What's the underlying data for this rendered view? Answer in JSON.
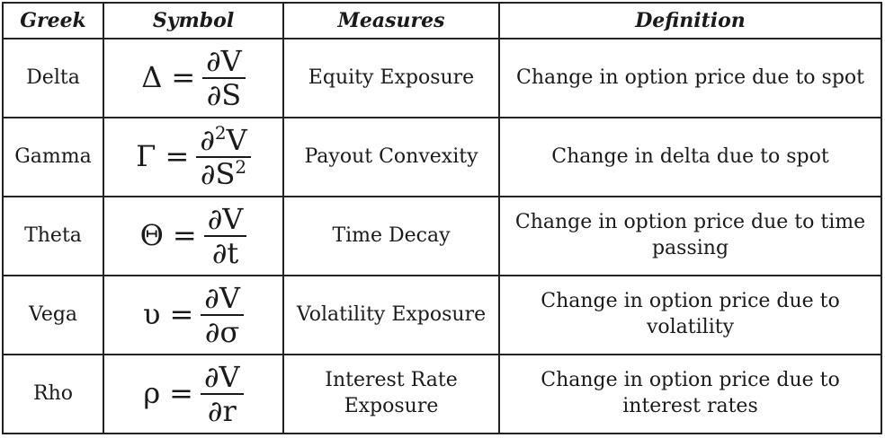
{
  "headers": {
    "greek": "Greek",
    "symbol": "Symbol",
    "measures": "Measures",
    "definition": "Definition"
  },
  "rows": [
    {
      "greek": "Delta",
      "lhs": "Δ",
      "num": "∂V",
      "num_sup": "",
      "den": "∂S",
      "den_sup": "",
      "measures": "Equity Exposure",
      "definition": "Change in option price due to spot"
    },
    {
      "greek": "Gamma",
      "lhs": "Γ",
      "num": "∂",
      "num_sup": "2",
      "num_tail": "V",
      "den": "∂S",
      "den_sup": "2",
      "measures": "Payout Convexity",
      "definition": "Change in delta due to spot"
    },
    {
      "greek": "Theta",
      "lhs": "Θ",
      "num": "∂V",
      "num_sup": "",
      "den": "∂t",
      "den_sup": "",
      "measures": "Time Decay",
      "definition": "Change in option price due to time passing"
    },
    {
      "greek": "Vega",
      "lhs": "υ",
      "num": "∂V",
      "num_sup": "",
      "den": "∂σ",
      "den_sup": "",
      "measures": "Volatility Exposure",
      "definition": "Change in option price due to volatility"
    },
    {
      "greek": "Rho",
      "lhs": "ρ",
      "num": "∂V",
      "num_sup": "",
      "den": "∂r",
      "den_sup": "",
      "measures": "Interest Rate Exposure",
      "definition": "Change in option price due to interest rates"
    }
  ],
  "equals_sign": "="
}
